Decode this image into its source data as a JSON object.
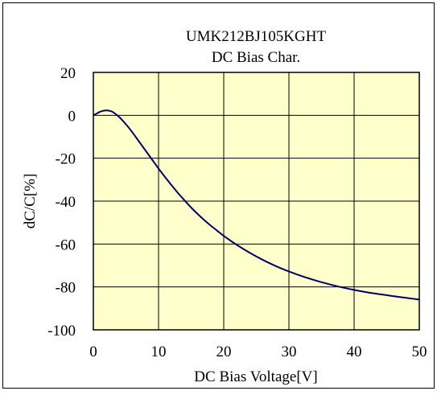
{
  "chart_data": {
    "type": "line",
    "title": "UMK212BJ105KGHT",
    "subtitle": "DC Bias Char.",
    "xlabel": "DC Bias Voltage[V]",
    "ylabel": "dC/C[%]",
    "xlim": [
      0,
      50
    ],
    "ylim": [
      -100,
      20
    ],
    "x_ticks": [
      0,
      10,
      20,
      30,
      40,
      50
    ],
    "y_ticks": [
      20,
      0,
      -20,
      -40,
      -60,
      -80,
      -100
    ],
    "grid": true,
    "legend": "none",
    "colors": {
      "plot_background": "#FFFFCC",
      "line": "#000066",
      "grid": "#000000"
    },
    "series": [
      {
        "x": [
          0,
          0.5,
          1,
          1.5,
          2,
          2.5,
          3,
          4,
          5,
          6,
          7,
          8,
          9,
          10,
          11,
          12,
          13,
          14,
          15,
          16,
          17,
          18,
          19,
          20,
          22,
          24,
          26,
          28,
          30,
          32,
          34,
          36,
          38,
          40,
          42,
          44,
          46,
          48,
          50
        ],
        "y": [
          0,
          0.8,
          1.6,
          2.1,
          2.3,
          2.1,
          1.5,
          -0.9,
          -4.2,
          -8.0,
          -12.2,
          -16.4,
          -20.6,
          -24.8,
          -28.8,
          -32.6,
          -36.3,
          -39.7,
          -43.0,
          -46.0,
          -48.8,
          -51.4,
          -53.8,
          -56.2,
          -60.4,
          -64.1,
          -67.4,
          -70.3,
          -72.8,
          -75.0,
          -76.9,
          -78.6,
          -80.1,
          -81.4,
          -82.5,
          -83.4,
          -84.3,
          -85.1,
          -85.9
        ]
      }
    ]
  }
}
